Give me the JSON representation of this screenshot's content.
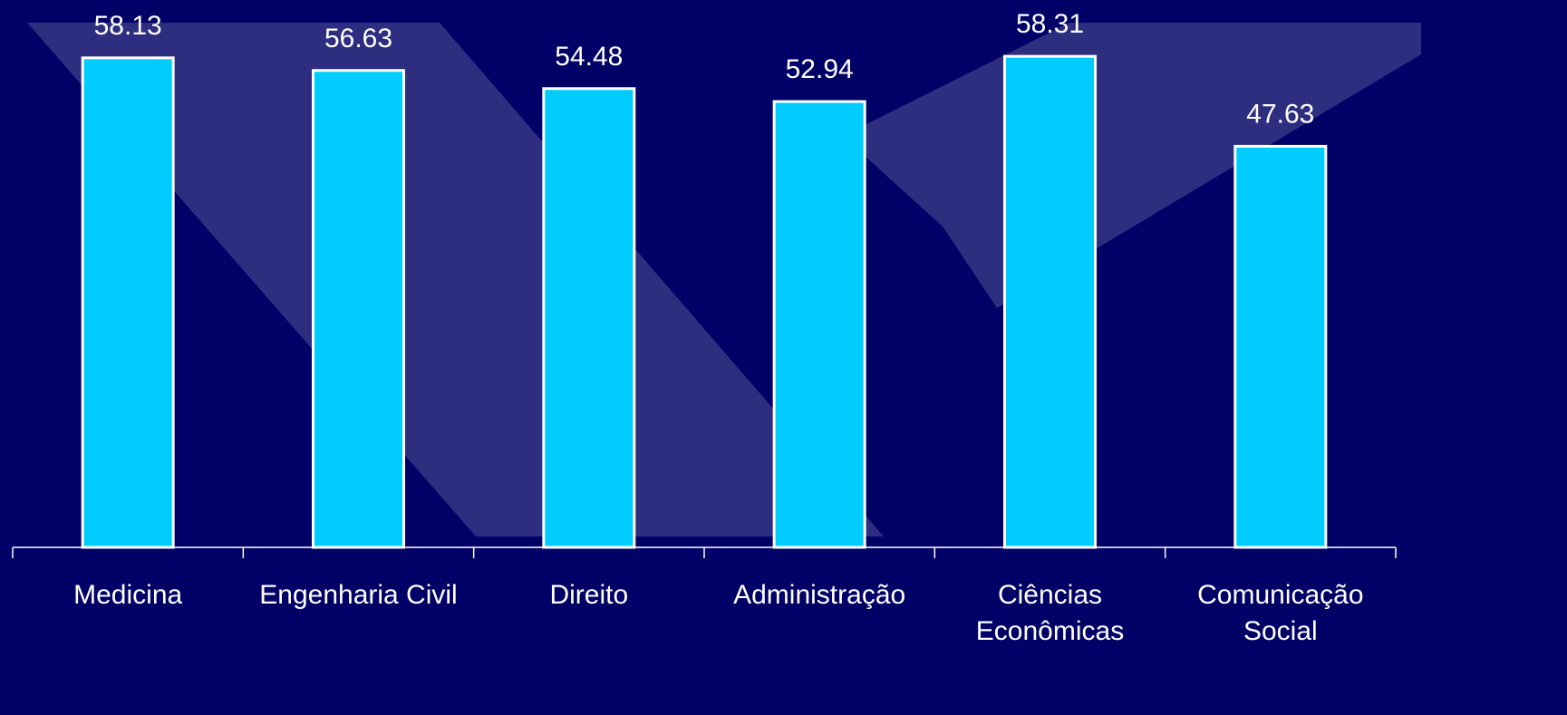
{
  "chart_data": {
    "type": "bar",
    "categories": [
      "Medicina",
      "Engenharia Civil",
      "Direito",
      "Administração",
      "Ciências Econômicas",
      "Comunicação Social"
    ],
    "values": [
      58.13,
      56.63,
      54.48,
      52.94,
      58.31,
      47.63
    ],
    "color": "#00ccff",
    "ylim": [
      0,
      65
    ]
  }
}
